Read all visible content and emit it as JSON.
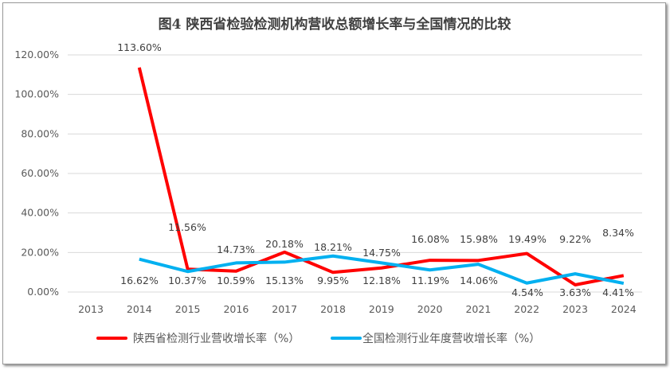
{
  "chart_data": {
    "type": "line",
    "title": "图4  陕西省检验检测机构营收总额增长率与全国情况的比较",
    "categories": [
      "2013",
      "2014",
      "2015",
      "2016",
      "2017",
      "2018",
      "2019",
      "2020",
      "2021",
      "2022",
      "2023",
      "2024"
    ],
    "ylim": [
      0,
      120
    ],
    "yticks": [
      "0.00%",
      "20.00%",
      "40.00%",
      "60.00%",
      "80.00%",
      "100.00%",
      "120.00%"
    ],
    "grid": true,
    "legend": "bottom",
    "series": [
      {
        "name": "陕西省检测行业营收增长率（%）",
        "color": "#ff0000",
        "values": [
          null,
          113.6,
          11.56,
          10.59,
          20.18,
          9.95,
          12.18,
          16.08,
          15.98,
          19.49,
          3.63,
          8.34
        ],
        "labels": [
          "",
          "113.60%",
          "11.56%",
          "10.59%",
          "20.18%",
          "9.95%",
          "12.18%",
          "16.08%",
          "15.98%",
          "19.49%",
          "3.63%",
          "8.34%"
        ]
      },
      {
        "name": "全国检测行业年度营收增长率（%）",
        "color": "#00b0f0",
        "values": [
          null,
          16.62,
          10.37,
          14.73,
          15.13,
          18.21,
          14.75,
          11.19,
          14.06,
          4.54,
          9.22,
          4.41
        ],
        "labels": [
          "",
          "16.62%",
          "10.37%",
          "14.73%",
          "15.13%",
          "18.21%",
          "14.75%",
          "11.19%",
          "14.06%",
          "4.54%",
          "9.22%",
          "4.41%"
        ]
      }
    ]
  }
}
